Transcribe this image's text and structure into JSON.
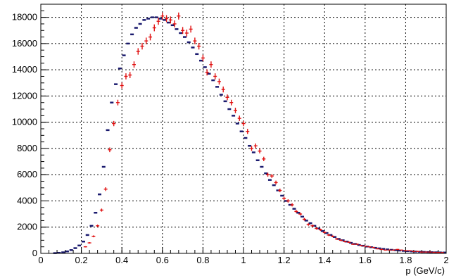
{
  "chart_data": {
    "type": "scatter",
    "title": "",
    "xlabel": "p (GeV/c)",
    "ylabel": "",
    "xlim": [
      0,
      2
    ],
    "ylim": [
      0,
      19000
    ],
    "grid": true,
    "legend": "none",
    "x_ticks": [
      0,
      0.2,
      0.4,
      0.6,
      0.8,
      1,
      1.2,
      1.4,
      1.6,
      1.8,
      2
    ],
    "x_tick_labels": [
      "0",
      "0.2",
      "0.4",
      "0.6",
      "0.8",
      "1",
      "1.2",
      "1.4",
      "1.6",
      "1.8",
      "2"
    ],
    "y_ticks": [
      0,
      2000,
      4000,
      6000,
      8000,
      10000,
      12000,
      14000,
      16000,
      18000
    ],
    "y_tick_labels": [
      "0",
      "2000",
      "4000",
      "6000",
      "8000",
      "10000",
      "12000",
      "14000",
      "16000",
      "18000"
    ],
    "series": [
      {
        "color": "#1a1a6e",
        "marker": "dash",
        "x": [
          0.07,
          0.09,
          0.11,
          0.13,
          0.15,
          0.17,
          0.19,
          0.21,
          0.23,
          0.25,
          0.27,
          0.29,
          0.31,
          0.33,
          0.35,
          0.37,
          0.39,
          0.41,
          0.43,
          0.45,
          0.47,
          0.49,
          0.51,
          0.53,
          0.55,
          0.57,
          0.59,
          0.61,
          0.63,
          0.65,
          0.67,
          0.69,
          0.71,
          0.73,
          0.75,
          0.77,
          0.79,
          0.81,
          0.83,
          0.85,
          0.87,
          0.89,
          0.91,
          0.93,
          0.95,
          0.97,
          0.99,
          1.01,
          1.03,
          1.05,
          1.07,
          1.09,
          1.11,
          1.13,
          1.15,
          1.17,
          1.19,
          1.21,
          1.23,
          1.25,
          1.27,
          1.29,
          1.31,
          1.33,
          1.35,
          1.37,
          1.39,
          1.41,
          1.43,
          1.45,
          1.47,
          1.49,
          1.51,
          1.53,
          1.55,
          1.57,
          1.59,
          1.61,
          1.63,
          1.65,
          1.67,
          1.69,
          1.71,
          1.73,
          1.75,
          1.77,
          1.79,
          1.81,
          1.83,
          1.85,
          1.87,
          1.89,
          1.91,
          1.93,
          1.95,
          1.97,
          1.99
        ],
        "y": [
          20,
          40,
          80,
          150,
          250,
          400,
          600,
          900,
          1400,
          2100,
          3100,
          4500,
          6600,
          9400,
          11500,
          12900,
          14100,
          15100,
          16000,
          16700,
          17200,
          17500,
          17800,
          17900,
          18000,
          18000,
          17900,
          17800,
          17600,
          17400,
          17100,
          16800,
          16500,
          16100,
          15700,
          15200,
          14700,
          14200,
          13700,
          13200,
          12700,
          12100,
          11600,
          11000,
          10500,
          9900,
          9300,
          8800,
          8200,
          7700,
          7100,
          6600,
          6100,
          5600,
          5200,
          4800,
          4400,
          4000,
          3700,
          3400,
          3100,
          2800,
          2500,
          2300,
          2100,
          1900,
          1700,
          1550,
          1400,
          1250,
          1100,
          1000,
          900,
          800,
          720,
          640,
          580,
          520,
          470,
          420,
          380,
          340,
          300,
          270,
          240,
          215,
          190,
          170,
          150,
          135,
          120,
          110,
          100,
          90,
          80,
          70,
          65
        ]
      },
      {
        "color": "#e01010",
        "marker": "cross",
        "x": [
          0.22,
          0.24,
          0.26,
          0.28,
          0.3,
          0.32,
          0.34,
          0.36,
          0.38,
          0.4,
          0.42,
          0.44,
          0.46,
          0.48,
          0.5,
          0.52,
          0.54,
          0.56,
          0.58,
          0.6,
          0.62,
          0.64,
          0.66,
          0.68,
          0.7,
          0.72,
          0.74,
          0.76,
          0.78,
          0.8,
          0.82,
          0.84,
          0.86,
          0.88,
          0.9,
          0.92,
          0.94,
          0.96,
          0.98,
          1.0,
          1.02,
          1.04,
          1.06,
          1.08,
          1.1,
          1.12,
          1.14,
          1.16,
          1.18,
          1.2,
          1.22,
          1.24,
          1.26,
          1.28,
          1.3,
          1.32,
          1.34,
          1.36,
          1.38,
          1.4,
          1.42,
          1.44,
          1.46,
          1.48,
          1.5,
          1.52,
          1.54,
          1.56,
          1.58,
          1.6,
          1.62,
          1.64,
          1.66,
          1.68,
          1.7,
          1.72,
          1.74,
          1.76,
          1.78,
          1.8,
          1.82,
          1.84,
          1.86,
          1.88,
          1.9,
          1.92,
          1.94,
          1.96,
          1.98
        ],
        "y": [
          500,
          800,
          1300,
          2100,
          3300,
          4900,
          7900,
          9900,
          11500,
          12800,
          13500,
          13600,
          14400,
          15400,
          15800,
          16200,
          16500,
          17200,
          17700,
          18100,
          17900,
          17800,
          17500,
          18100,
          17000,
          16800,
          17100,
          16200,
          15800,
          14900,
          13800,
          14400,
          13500,
          13100,
          12500,
          11900,
          11500,
          10900,
          10300,
          9900,
          9300,
          8000,
          8200,
          7800,
          7200,
          6000,
          5900,
          5400,
          4800,
          4200,
          4000,
          3700,
          3200,
          3000,
          2600,
          2200,
          2100,
          1900,
          1800,
          1600,
          1400,
          1300,
          1100,
          1000,
          900,
          850,
          700,
          700,
          600,
          550,
          500,
          450,
          350,
          300,
          250,
          250,
          250,
          300,
          250,
          200,
          200,
          150,
          150,
          100,
          100,
          100,
          80,
          70,
          60
        ]
      }
    ]
  }
}
